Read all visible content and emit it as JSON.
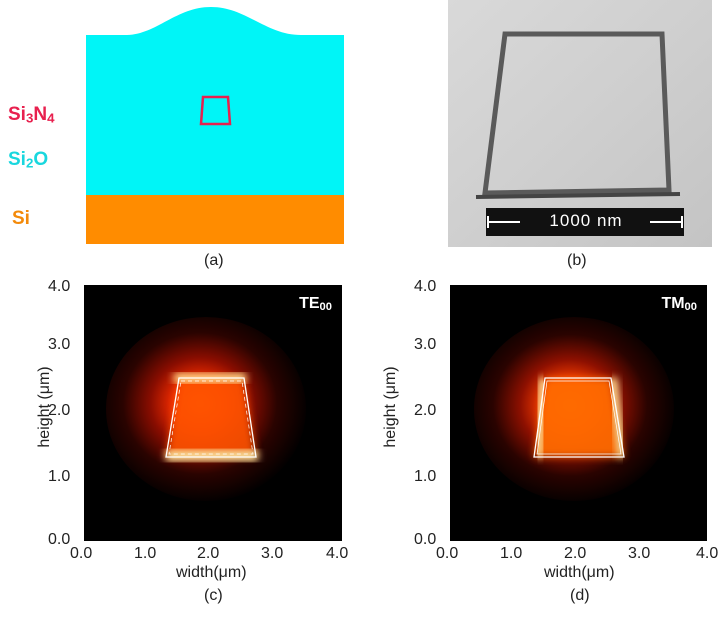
{
  "panel_a": {
    "caption": "(a)",
    "materials": [
      {
        "base": "Si",
        "sub": "3",
        "base2": "N",
        "sub2": "4",
        "color": "#e8204e"
      },
      {
        "base": "Si",
        "sub": "2",
        "base2": "O",
        "sub2": "",
        "color": "#19d7de"
      },
      {
        "base": "Si",
        "sub": "",
        "base2": "",
        "sub2": "",
        "color": "#f38a0a"
      }
    ],
    "colors": {
      "cladding": "#00f5f7",
      "substrate": "#ff8c00",
      "core_outline": "#e8204e"
    }
  },
  "panel_b": {
    "caption": "(b)",
    "scale_bar": "1000 nm"
  },
  "panel_c": {
    "caption": "(c)",
    "mode_label": "TE",
    "mode_sub": "00"
  },
  "panel_d": {
    "caption": "(d)",
    "mode_label": "TM",
    "mode_sub": "00"
  },
  "axes": {
    "xlabel": "width(μm)",
    "ylabel": "height (μm)",
    "xticks": [
      "0.0",
      "1.0",
      "2.0",
      "3.0",
      "4.0"
    ],
    "xticks_d": [
      "0.0",
      "1.0",
      "2.0",
      "3.0",
      "4.0"
    ],
    "yticks": [
      "4.0",
      "3.0",
      "2.0",
      "1.0",
      "0.0"
    ]
  }
}
